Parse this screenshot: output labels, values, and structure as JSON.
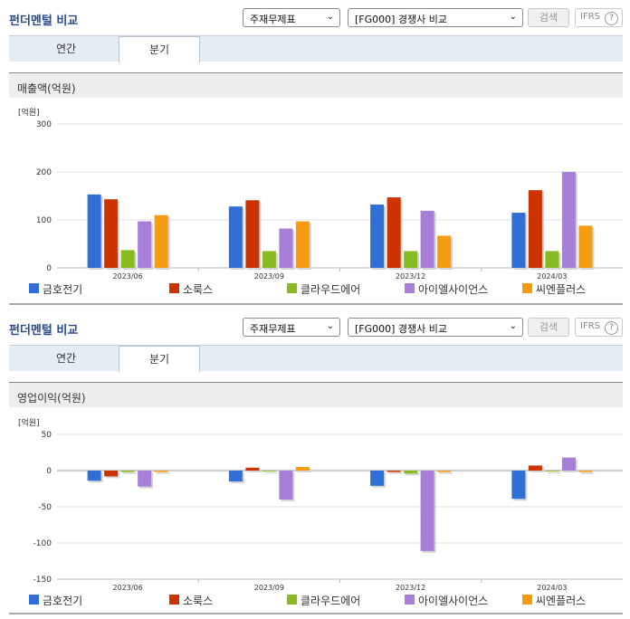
{
  "panels": [
    {
      "title": "펀더멘털 비교",
      "select_item": "주재무제표",
      "select_compare": "[FG000] 경쟁사 비교",
      "search_label": "검색",
      "ifrs_label": "IFRS",
      "help_glyph": "?",
      "tabs": [
        {
          "label": "연간",
          "active": false
        },
        {
          "label": "분기",
          "active": true
        }
      ],
      "subtitle": "매출액(억원)",
      "chart_data": {
        "type": "bar",
        "unit_label": "[억원]",
        "categories": [
          "2023/06",
          "2023/09",
          "2023/12",
          "2024/03"
        ],
        "ylim": [
          0,
          300
        ],
        "yticks": [
          0,
          100,
          200,
          300
        ],
        "grid": true,
        "legend_position": "bottom",
        "series": [
          {
            "name": "금호전기",
            "color": "#2f6fd6",
            "values": [
              153,
              128,
              132,
              115
            ]
          },
          {
            "name": "소룩스",
            "color": "#cc3300",
            "values": [
              143,
              141,
              147,
              162
            ]
          },
          {
            "name": "클라우드에어",
            "color": "#88bb22",
            "values": [
              37,
              35,
              35,
              35
            ]
          },
          {
            "name": "아이엘사이언스",
            "color": "#a77fd9",
            "values": [
              97,
              82,
              119,
              200
            ]
          },
          {
            "name": "씨엔플러스",
            "color": "#f59c12",
            "values": [
              110,
              97,
              67,
              88
            ]
          }
        ]
      }
    },
    {
      "title": "펀더멘털 비교",
      "select_item": "주재무제표",
      "select_compare": "[FG000] 경쟁사 비교",
      "search_label": "검색",
      "ifrs_label": "IFRS",
      "help_glyph": "?",
      "tabs": [
        {
          "label": "연간",
          "active": false
        },
        {
          "label": "분기",
          "active": true
        }
      ],
      "subtitle": "영업이익(억원)",
      "chart_data": {
        "type": "bar",
        "unit_label": "[억원]",
        "categories": [
          "2023/06",
          "2023/09",
          "2023/12",
          "2024/03"
        ],
        "ylim": [
          -150,
          50
        ],
        "yticks": [
          50,
          0,
          -50,
          -100,
          -150
        ],
        "grid": true,
        "legend_position": "bottom",
        "series": [
          {
            "name": "금호전기",
            "color": "#2f6fd6",
            "values": [
              -14,
              -15,
              -21,
              -39
            ]
          },
          {
            "name": "소룩스",
            "color": "#cc3300",
            "values": [
              -8,
              4,
              -2,
              7
            ]
          },
          {
            "name": "클라우드에어",
            "color": "#88bb22",
            "values": [
              -2,
              0,
              -4,
              0
            ]
          },
          {
            "name": "아이엘사이언스",
            "color": "#a77fd9",
            "values": [
              -22,
              -40,
              -111,
              18
            ]
          },
          {
            "name": "씨엔플러스",
            "color": "#f59c12",
            "values": [
              -2,
              5,
              -2,
              -2
            ]
          }
        ]
      }
    }
  ]
}
